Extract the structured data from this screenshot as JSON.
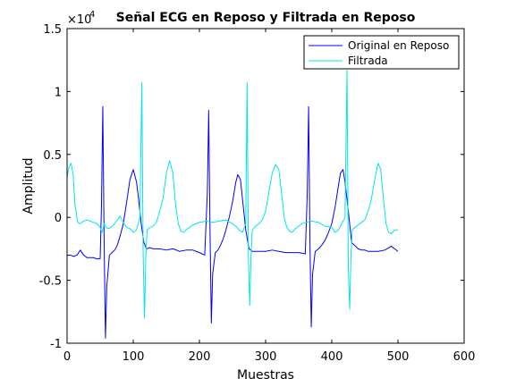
{
  "chart_data": {
    "type": "line",
    "title": "Señal ECG en Reposo y Filtrada en Reposo",
    "xlabel": "Muestras",
    "ylabel": "Amplitud",
    "exponent_label": "×10",
    "exponent_power": "4",
    "xlim": [
      0,
      600
    ],
    "ylim": [
      -1,
      1.5
    ],
    "xticks": [
      0,
      100,
      200,
      300,
      400,
      500,
      600
    ],
    "yticks": [
      -1,
      -0.5,
      0,
      0.5,
      1,
      1.5
    ],
    "xtick_labels": [
      "0",
      "100",
      "200",
      "300",
      "400",
      "500",
      "600"
    ],
    "ytick_labels": [
      "-1",
      "-0.5",
      "0",
      "0.5",
      "1",
      "1.5"
    ],
    "grid": false,
    "legend_position": "top-right",
    "series": [
      {
        "name": "Original en Reposo",
        "color": "#0000ff",
        "x": [
          0,
          5,
          10,
          15,
          20,
          25,
          30,
          35,
          40,
          45,
          50,
          52,
          54,
          56,
          58,
          60,
          64,
          68,
          72,
          76,
          80,
          85,
          90,
          95,
          100,
          105,
          108,
          112,
          116,
          120,
          125,
          130,
          140,
          150,
          160,
          170,
          180,
          190,
          200,
          208,
          212,
          214,
          216,
          218,
          220,
          224,
          228,
          232,
          236,
          240,
          245,
          250,
          255,
          258,
          262,
          266,
          270,
          275,
          280,
          290,
          300,
          310,
          320,
          330,
          340,
          350,
          360,
          363,
          365,
          367,
          369,
          371,
          375,
          380,
          385,
          390,
          395,
          400,
          405,
          410,
          413,
          417,
          420,
          425,
          430,
          440,
          445,
          450,
          455,
          460,
          470,
          480,
          490,
          495,
          500
        ],
        "y": [
          -0.3,
          -0.3,
          -0.31,
          -0.3,
          -0.26,
          -0.3,
          -0.32,
          -0.32,
          -0.32,
          -0.33,
          -0.33,
          0.1,
          0.88,
          -0.2,
          -0.96,
          -0.55,
          -0.3,
          -0.28,
          -0.26,
          -0.22,
          -0.15,
          -0.05,
          0.12,
          0.3,
          0.38,
          0.28,
          0.15,
          -0.05,
          -0.2,
          -0.25,
          -0.24,
          -0.25,
          -0.25,
          -0.26,
          -0.25,
          -0.27,
          -0.26,
          -0.26,
          -0.28,
          -0.3,
          0.2,
          0.85,
          -0.1,
          -0.84,
          -0.45,
          -0.28,
          -0.26,
          -0.22,
          -0.17,
          -0.1,
          0.0,
          0.12,
          0.28,
          0.34,
          0.3,
          0.1,
          -0.1,
          -0.25,
          -0.27,
          -0.27,
          -0.27,
          -0.26,
          -0.27,
          -0.28,
          -0.28,
          -0.28,
          -0.29,
          0.2,
          0.88,
          -0.2,
          -0.87,
          -0.45,
          -0.27,
          -0.25,
          -0.22,
          -0.18,
          -0.12,
          -0.05,
          0.08,
          0.25,
          0.35,
          0.38,
          0.28,
          0.05,
          -0.2,
          -0.25,
          -0.26,
          -0.26,
          -0.27,
          -0.27,
          -0.27,
          -0.26,
          -0.23,
          -0.25,
          -0.27
        ]
      },
      {
        "name": "Filtrada",
        "color": "#00e5e5",
        "x": [
          0,
          3,
          6,
          9,
          12,
          16,
          20,
          25,
          30,
          35,
          40,
          45,
          50,
          53,
          56,
          59,
          62,
          66,
          70,
          75,
          80,
          85,
          90,
          95,
          100,
          105,
          110,
          113,
          115,
          117,
          119,
          121,
          125,
          130,
          135,
          140,
          145,
          150,
          155,
          160,
          164,
          168,
          172,
          176,
          180,
          185,
          190,
          200,
          210,
          220,
          230,
          240,
          250,
          255,
          260,
          265,
          270,
          272,
          274,
          276,
          278,
          280,
          285,
          290,
          295,
          300,
          305,
          310,
          315,
          320,
          324,
          328,
          332,
          336,
          340,
          345,
          350,
          355,
          360,
          370,
          380,
          390,
          400,
          405,
          410,
          415,
          420,
          423,
          425,
          427,
          429,
          431,
          435,
          440,
          445,
          450,
          455,
          460,
          465,
          470,
          474,
          478,
          482,
          486,
          490,
          495,
          500
        ],
        "y": [
          0.32,
          0.4,
          0.43,
          0.35,
          0.1,
          -0.04,
          -0.05,
          -0.03,
          -0.02,
          -0.03,
          -0.04,
          -0.05,
          -0.08,
          -0.12,
          -0.05,
          -0.08,
          -0.09,
          -0.08,
          -0.06,
          -0.03,
          0.01,
          -0.04,
          -0.08,
          -0.09,
          -0.12,
          -0.1,
          0.0,
          1.07,
          -0.3,
          -0.8,
          -0.3,
          -0.1,
          -0.08,
          -0.07,
          -0.04,
          0.05,
          0.15,
          0.35,
          0.45,
          0.35,
          0.1,
          -0.05,
          -0.11,
          -0.12,
          -0.1,
          -0.08,
          -0.06,
          -0.04,
          -0.03,
          -0.04,
          -0.03,
          -0.02,
          -0.05,
          -0.07,
          -0.1,
          -0.12,
          -0.05,
          1.07,
          -0.3,
          -0.7,
          -0.3,
          -0.1,
          -0.07,
          -0.05,
          -0.02,
          0.05,
          0.2,
          0.35,
          0.42,
          0.38,
          0.2,
          0.0,
          -0.08,
          -0.11,
          -0.12,
          -0.09,
          -0.07,
          -0.05,
          -0.04,
          -0.03,
          -0.04,
          -0.07,
          -0.08,
          -0.12,
          -0.1,
          -0.05,
          0.0,
          1.17,
          -0.4,
          -0.73,
          -0.3,
          -0.1,
          -0.08,
          -0.06,
          -0.04,
          -0.02,
          0.05,
          0.15,
          0.3,
          0.43,
          0.38,
          0.15,
          -0.05,
          -0.12,
          -0.13,
          -0.1,
          -0.1
        ]
      }
    ]
  }
}
